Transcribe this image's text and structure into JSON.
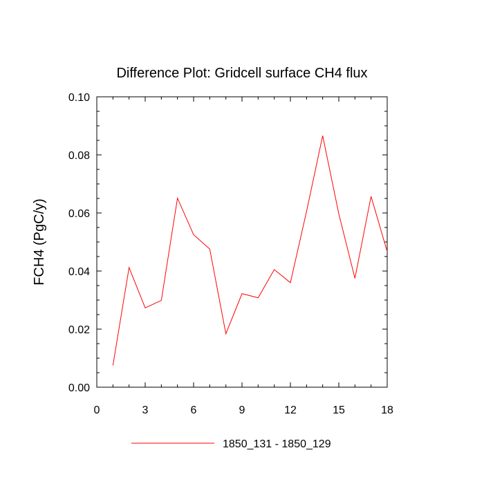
{
  "chart_data": {
    "type": "line",
    "title": "Difference Plot: Gridcell surface CH4 flux",
    "xlabel": "",
    "ylabel": "FCH4  (PgC/y)",
    "xlim": [
      0,
      18
    ],
    "ylim": [
      0,
      0.1
    ],
    "x_ticks": [
      "0",
      "3",
      "6",
      "9",
      "12",
      "15",
      "18"
    ],
    "y_ticks": [
      "0.00",
      "0.02",
      "0.04",
      "0.06",
      "0.08",
      "0.10"
    ],
    "grid": false,
    "legend_position": "bottom-center",
    "series": [
      {
        "name": "1850_131 - 1850_129",
        "color": "#ff0000",
        "x": [
          1,
          2,
          3,
          4,
          5,
          6,
          7,
          8,
          9,
          10,
          11,
          12,
          13,
          14,
          15,
          16,
          17,
          18
        ],
        "y": [
          0.0075,
          0.0412,
          0.0273,
          0.0299,
          0.0651,
          0.0525,
          0.0476,
          0.0184,
          0.0322,
          0.0308,
          0.0405,
          0.036,
          0.0605,
          0.0866,
          0.0597,
          0.0375,
          0.0657,
          0.0467
        ]
      }
    ]
  }
}
